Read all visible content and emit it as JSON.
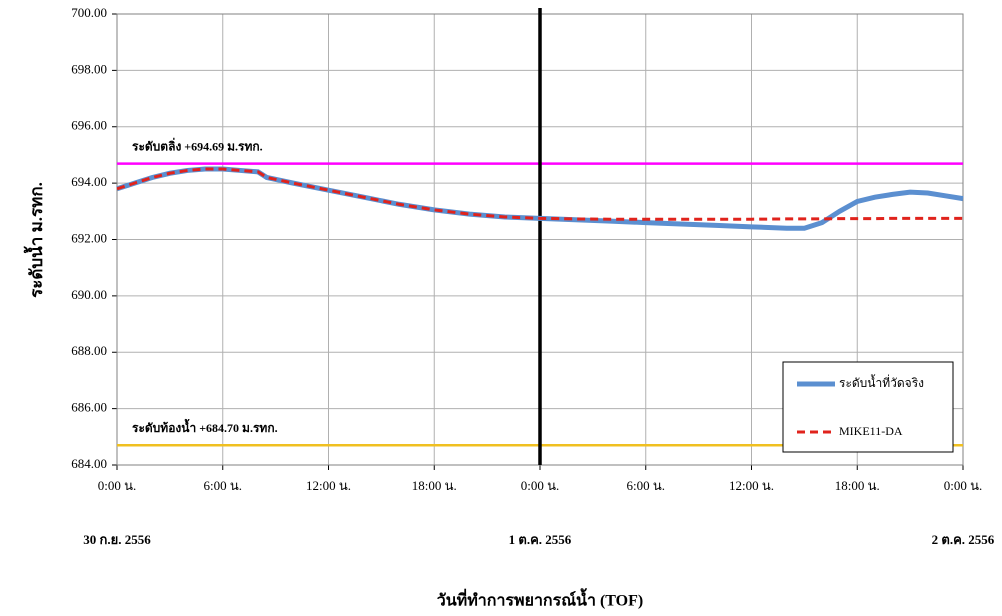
{
  "chart_data": {
    "type": "line",
    "y_label": "ระดับน้ำ  ม.รทก.",
    "x_label": "วันที่ทำการพยากรณ์น้ำ (TOF)",
    "x": [
      0,
      1,
      2,
      3,
      4,
      5,
      6,
      7,
      8,
      8.5,
      10,
      12,
      14,
      16,
      18,
      20,
      22,
      24,
      26,
      28,
      30,
      32,
      34,
      36,
      38,
      39,
      40,
      41,
      42,
      43,
      44,
      45,
      46,
      47,
      48
    ],
    "series": [
      {
        "name": "ระดับน้ำที่วัดจริง",
        "color": "#5b8fd0",
        "style": "solid",
        "values": [
          693.8,
          694.0,
          694.2,
          694.35,
          694.45,
          694.5,
          694.5,
          694.45,
          694.4,
          694.2,
          694.0,
          693.75,
          693.5,
          693.25,
          693.05,
          692.9,
          692.8,
          692.75,
          692.7,
          692.65,
          692.6,
          692.55,
          692.5,
          692.45,
          692.4,
          692.4,
          692.6,
          693.0,
          693.35,
          693.5,
          693.6,
          693.68,
          693.65,
          693.55,
          693.45
        ]
      },
      {
        "name": "MIKE11-DA",
        "color": "#e0231c",
        "style": "dashed",
        "values": [
          693.8,
          694.0,
          694.2,
          694.35,
          694.45,
          694.5,
          694.5,
          694.45,
          694.4,
          694.2,
          694.0,
          693.75,
          693.5,
          693.25,
          693.05,
          692.9,
          692.8,
          692.75,
          692.73,
          692.72,
          692.72,
          692.72,
          692.72,
          692.72,
          692.73,
          692.73,
          692.73,
          692.74,
          692.74,
          692.74,
          692.75,
          692.75,
          692.75,
          692.75,
          692.75
        ]
      }
    ],
    "xlim": [
      0,
      48
    ],
    "ylim": [
      684,
      700
    ],
    "xticks": [
      {
        "value": 0,
        "label": "0:00 น."
      },
      {
        "value": 6,
        "label": "6:00 น."
      },
      {
        "value": 12,
        "label": "12:00 น."
      },
      {
        "value": 18,
        "label": "18:00 น."
      },
      {
        "value": 24,
        "label": "0:00 น."
      },
      {
        "value": 30,
        "label": "6:00 น."
      },
      {
        "value": 36,
        "label": "12:00 น."
      },
      {
        "value": 42,
        "label": "18:00 น."
      },
      {
        "value": 48,
        "label": "0:00 น."
      }
    ],
    "yticks": [
      {
        "value": 684,
        "label": "684.00"
      },
      {
        "value": 686,
        "label": "686.00"
      },
      {
        "value": 688,
        "label": "688.00"
      },
      {
        "value": 690,
        "label": "690.00"
      },
      {
        "value": 692,
        "label": "692.00"
      },
      {
        "value": 694,
        "label": "694.00"
      },
      {
        "value": 696,
        "label": "696.00"
      },
      {
        "value": 698,
        "label": "698.00"
      },
      {
        "value": 700,
        "label": "700.00"
      }
    ],
    "date_labels": [
      {
        "value": 0,
        "label": "30 ก.ย. 2556"
      },
      {
        "value": 24,
        "label": "1 ต.ค. 2556"
      },
      {
        "value": 48,
        "label": "2 ต.ค. 2556"
      }
    ],
    "reference_lines": [
      {
        "value": 694.69,
        "label": "ระดับตลิ่ง +694.69 ม.รทก.",
        "color": "#ff00ff"
      },
      {
        "value": 684.7,
        "label": "ระดับท้องน้ำ +684.70 ม.รทก.",
        "color": "#f0c020"
      }
    ],
    "marker_line": {
      "value": 24,
      "color": "#000000"
    },
    "grid": true
  }
}
